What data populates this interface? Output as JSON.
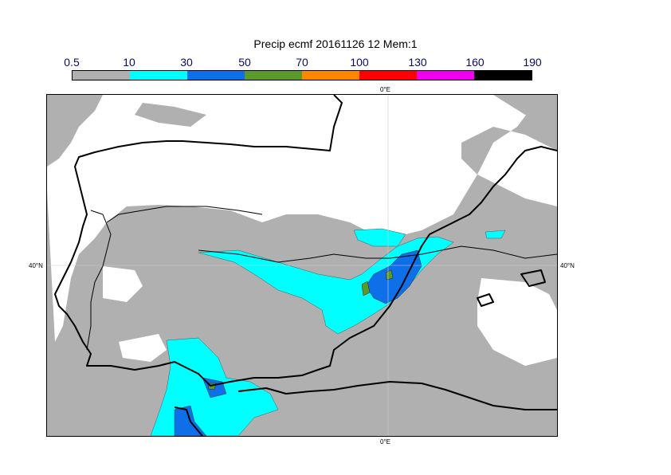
{
  "title": "Precip ecmf 20161126 12 Mem:1",
  "legend": {
    "ticks": [
      "0.5",
      "10",
      "30",
      "50",
      "70",
      "100",
      "130",
      "160",
      "190"
    ],
    "colors": [
      "#b0b0b0",
      "#00ffff",
      "#0f6fe8",
      "#5a9a2a",
      "#ff8800",
      "#ff0000",
      "#ee00ee",
      "#000000"
    ]
  },
  "axes": {
    "lon_top": "0°E",
    "lon_bottom": "0°E",
    "lat_left": "40°N",
    "lat_right": "40°N"
  }
}
